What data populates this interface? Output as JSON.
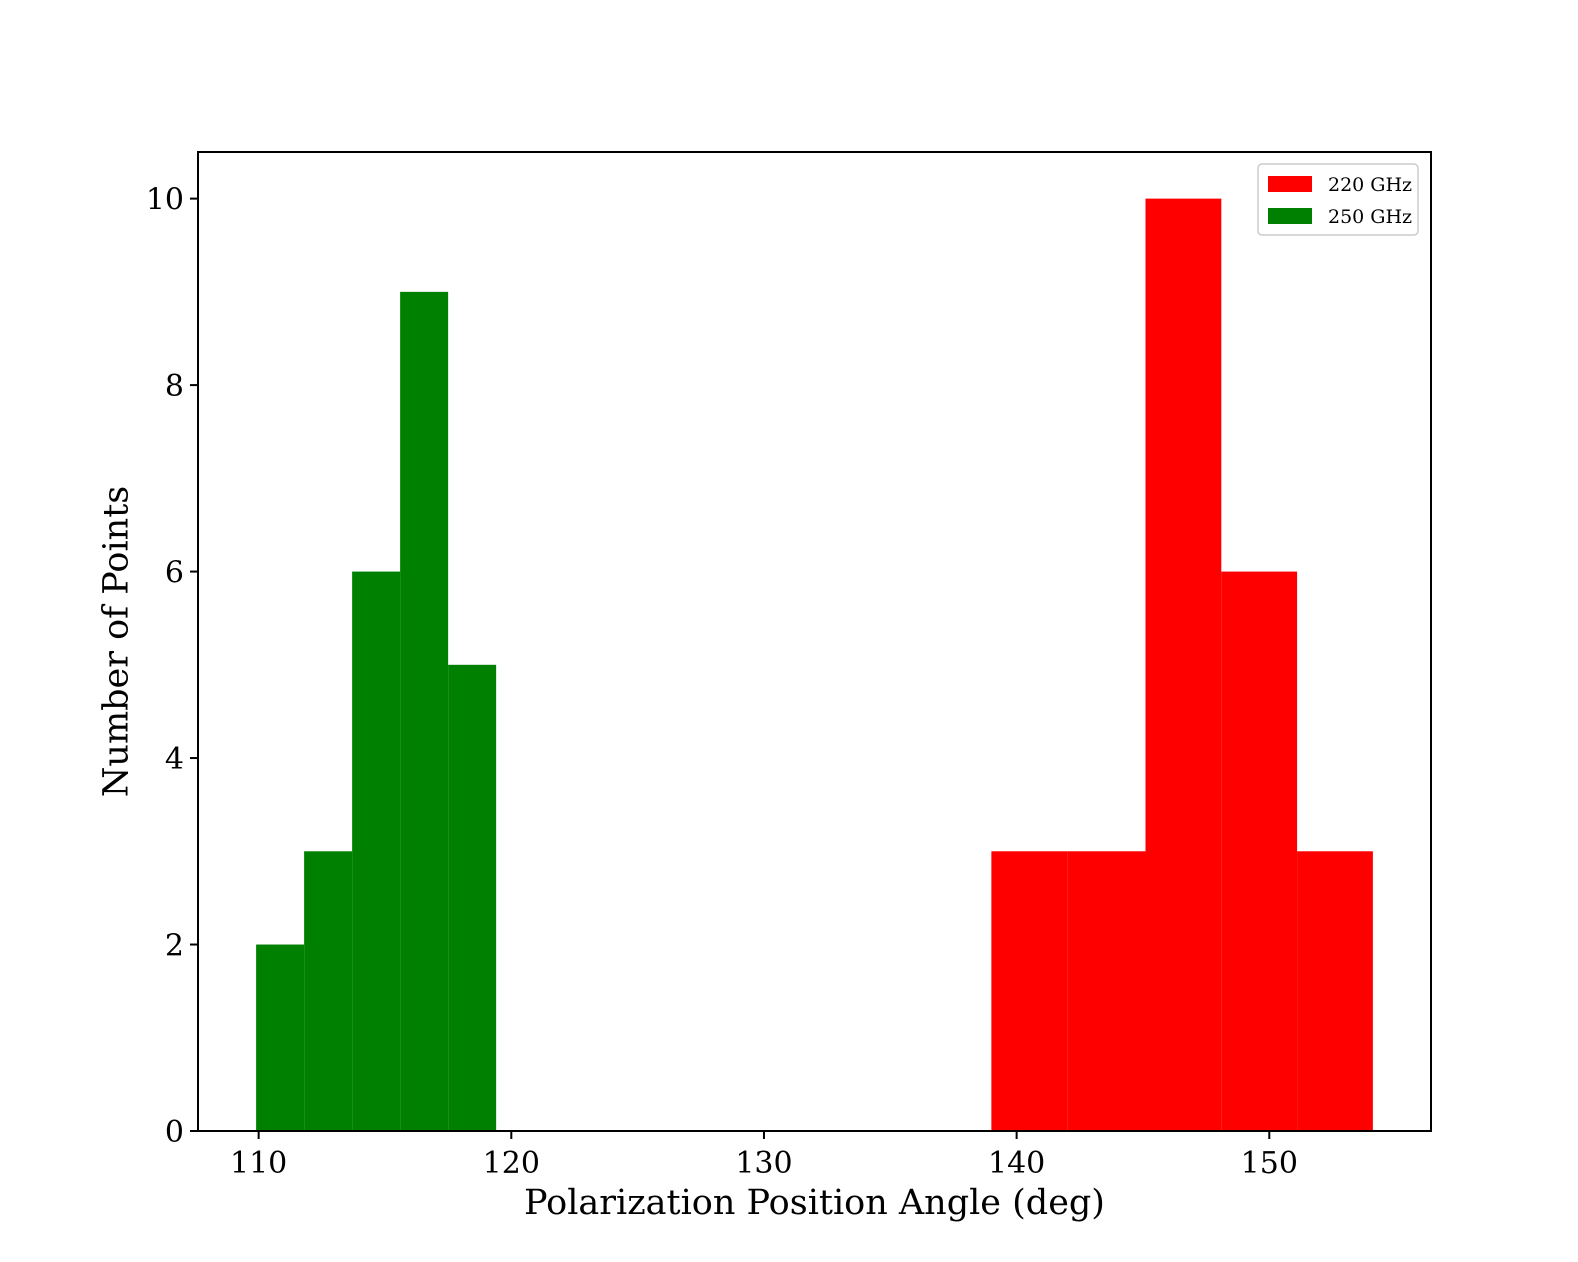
{
  "chart_data": {
    "type": "bar",
    "xlabel": "Polarization Position Angle (deg)",
    "ylabel": "Number of Points",
    "xlim": [
      107.6,
      156.4
    ],
    "ylim": [
      0,
      10.5
    ],
    "xticks": [
      110,
      120,
      130,
      140,
      150
    ],
    "yticks": [
      0,
      2,
      4,
      6,
      8,
      10
    ],
    "grid": false,
    "legend_position": "top-right",
    "series": [
      {
        "name": "220 GHz",
        "color": "#ff0000",
        "bin_edges": [
          139.0,
          142.0,
          145.1,
          148.1,
          151.1,
          154.1
        ],
        "counts": [
          3,
          3,
          10,
          6,
          3
        ]
      },
      {
        "name": "250 GHz",
        "color": "#008000",
        "bin_edges": [
          109.9,
          111.8,
          113.7,
          115.6,
          117.5,
          119.4
        ],
        "counts": [
          2,
          3,
          6,
          9,
          5
        ]
      }
    ]
  }
}
